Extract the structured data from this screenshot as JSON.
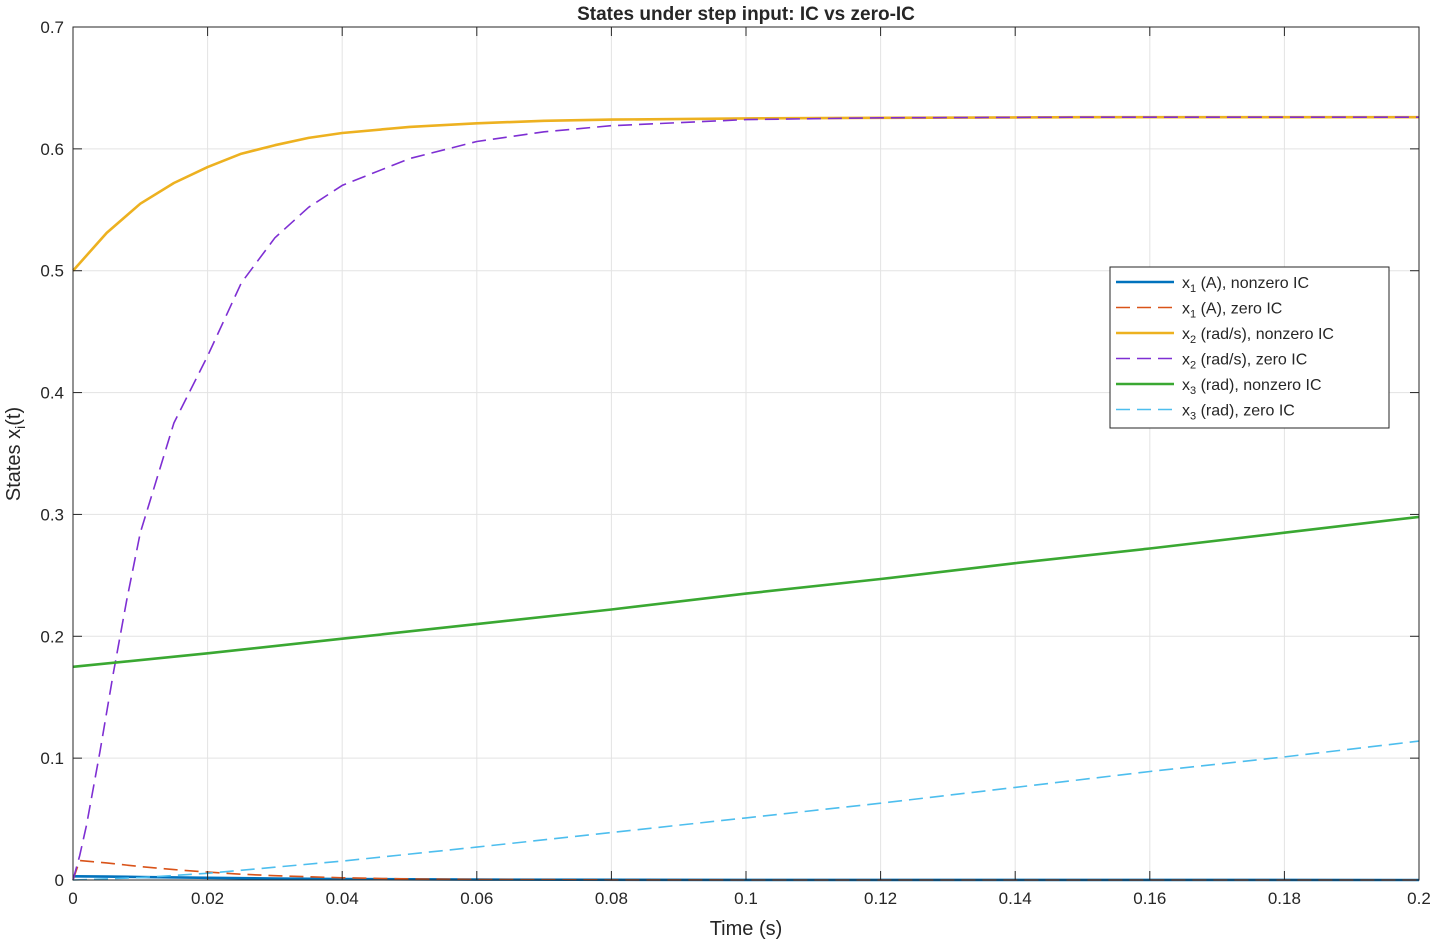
{
  "chart_data": {
    "type": "line",
    "title": "States under step input: IC vs zero-IC",
    "xlabel": "Time (s)",
    "ylabel": {
      "base": "States x",
      "sub": "i",
      "tail": "(t)"
    },
    "xlim": [
      0,
      0.2
    ],
    "ylim": [
      0,
      0.7
    ],
    "xticks": [
      0,
      0.02,
      0.04,
      0.06,
      0.08,
      0.1,
      0.12,
      0.14,
      0.16,
      0.18,
      0.2
    ],
    "xtick_labels": [
      "0",
      "0.02",
      "0.04",
      "0.06",
      "0.08",
      "0.1",
      "0.12",
      "0.14",
      "0.16",
      "0.18",
      "0.2"
    ],
    "yticks": [
      0,
      0.1,
      0.2,
      0.3,
      0.4,
      0.5,
      0.6,
      0.7
    ],
    "ytick_labels": [
      "0",
      "0.1",
      "0.2",
      "0.3",
      "0.4",
      "0.5",
      "0.6",
      "0.7"
    ],
    "grid": true,
    "legend_position": "right",
    "series": [
      {
        "name": "x1 (A), nonzero IC",
        "legend": {
          "base": "x",
          "sub": "1",
          "tail": " (A),  nonzero  IC"
        },
        "color": "#0072BD",
        "dash": "solid",
        "x": [
          0,
          0.005,
          0.01,
          0.02,
          0.03,
          0.04,
          0.06,
          0.1,
          0.2
        ],
        "y": [
          0.003,
          0.0028,
          0.0025,
          0.0018,
          0.0012,
          0.0008,
          0.0003,
          0.0001,
          0
        ]
      },
      {
        "name": "x1 (A), zero IC",
        "legend": {
          "base": "x",
          "sub": "1",
          "tail": " (A),  zero  IC"
        },
        "color": "#D95319",
        "dash": "dashed",
        "x": [
          0,
          0.001,
          0.005,
          0.01,
          0.015,
          0.02,
          0.025,
          0.03,
          0.04,
          0.05,
          0.06,
          0.08,
          0.1,
          0.2
        ],
        "y": [
          0,
          0.016,
          0.014,
          0.011,
          0.0085,
          0.0065,
          0.0048,
          0.0035,
          0.0018,
          0.0008,
          0.0004,
          0.0001,
          0,
          0
        ]
      },
      {
        "name": "x2 (rad/s), nonzero IC",
        "legend": {
          "base": "x",
          "sub": "2",
          "tail": " (rad/s),  nonzero  IC"
        },
        "color": "#EDB120",
        "dash": "solid",
        "x": [
          0,
          0.005,
          0.01,
          0.015,
          0.02,
          0.025,
          0.03,
          0.035,
          0.04,
          0.05,
          0.06,
          0.07,
          0.08,
          0.1,
          0.12,
          0.15,
          0.2
        ],
        "y": [
          0.5,
          0.531,
          0.555,
          0.572,
          0.585,
          0.596,
          0.603,
          0.609,
          0.613,
          0.618,
          0.621,
          0.623,
          0.624,
          0.625,
          0.6255,
          0.626,
          0.626
        ]
      },
      {
        "name": "x2 (rad/s), zero IC",
        "legend": {
          "base": "x",
          "sub": "2",
          "tail": " (rad/s),  zero  IC"
        },
        "color": "#7E2FD3",
        "dash": "dashed",
        "x": [
          0,
          0.001,
          0.002,
          0.004,
          0.006,
          0.008,
          0.01,
          0.015,
          0.02,
          0.025,
          0.03,
          0.035,
          0.04,
          0.05,
          0.06,
          0.07,
          0.08,
          0.1,
          0.12,
          0.15,
          0.2
        ],
        "y": [
          0,
          0.02,
          0.045,
          0.105,
          0.17,
          0.23,
          0.285,
          0.375,
          0.43,
          0.49,
          0.527,
          0.552,
          0.57,
          0.592,
          0.606,
          0.614,
          0.619,
          0.624,
          0.6255,
          0.626,
          0.626
        ]
      },
      {
        "name": "x3 (rad), nonzero IC",
        "legend": {
          "base": "x",
          "sub": "3",
          "tail": " (rad),  nonzero  IC"
        },
        "color": "#3AA832",
        "dash": "solid",
        "x": [
          0,
          0.02,
          0.04,
          0.06,
          0.08,
          0.1,
          0.12,
          0.14,
          0.16,
          0.18,
          0.2
        ],
        "y": [
          0.175,
          0.186,
          0.198,
          0.21,
          0.222,
          0.235,
          0.247,
          0.26,
          0.272,
          0.285,
          0.298
        ]
      },
      {
        "name": "x3 (rad), zero IC",
        "legend": {
          "base": "x",
          "sub": "3",
          "tail": " (rad),  zero  IC"
        },
        "color": "#4DBEEE",
        "dash": "dashed",
        "x": [
          0,
          0.01,
          0.02,
          0.03,
          0.04,
          0.06,
          0.08,
          0.1,
          0.12,
          0.14,
          0.16,
          0.18,
          0.2
        ],
        "y": [
          0,
          0.002,
          0.0055,
          0.0105,
          0.0155,
          0.027,
          0.039,
          0.051,
          0.063,
          0.076,
          0.089,
          0.101,
          0.114
        ]
      }
    ]
  }
}
